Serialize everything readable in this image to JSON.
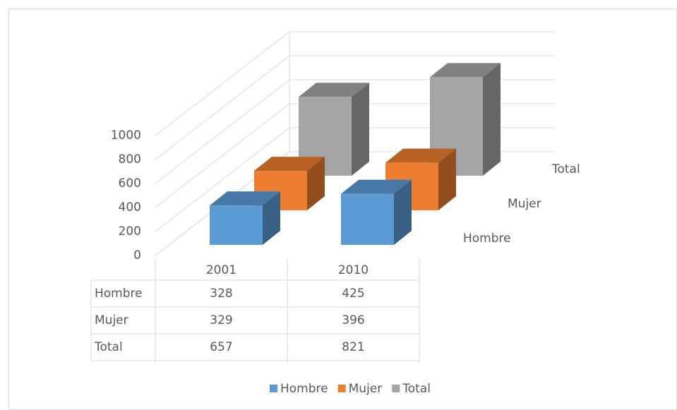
{
  "chart_data": {
    "type": "bar3d",
    "categories": [
      "2001",
      "2010"
    ],
    "series": [
      {
        "name": "Hombre",
        "color": "#5b9bd5",
        "values": [
          328,
          425
        ]
      },
      {
        "name": "Mujer",
        "color": "#ed7d31",
        "values": [
          329,
          396
        ]
      },
      {
        "name": "Total",
        "color": "#a5a5a5",
        "values": [
          657,
          821
        ]
      }
    ],
    "ylim": [
      0,
      1000
    ],
    "yticks": [
      0,
      200,
      400,
      600,
      800,
      1000
    ],
    "grid": true,
    "data_table": true,
    "legend": "bottom"
  }
}
